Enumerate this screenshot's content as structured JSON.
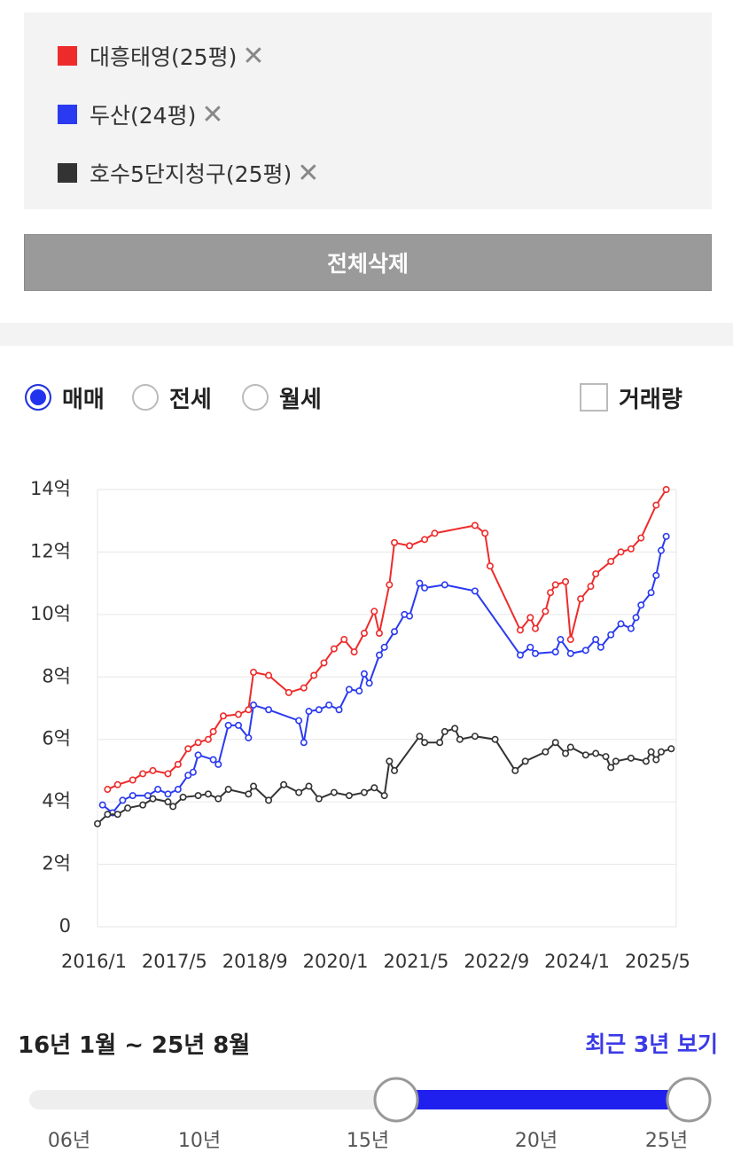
{
  "chart_data": {
    "type": "line",
    "series": [
      {
        "name": "대흥태영(25평)",
        "color": "#ee2b2b",
        "x": [
          "2016/3",
          "2016/5",
          "2016/8",
          "2016/10",
          "2016/12",
          "2017/3",
          "2017/5",
          "2017/7",
          "2017/9",
          "2017/11",
          "2017/12",
          "2018/2",
          "2018/5",
          "2018/7",
          "2018/8",
          "2018/11",
          "2019/3",
          "2019/6",
          "2019/8",
          "2019/10",
          "2019/12",
          "2020/2",
          "2020/4",
          "2020/6",
          "2020/8",
          "2020/9",
          "2020/11",
          "2020/12",
          "2021/3",
          "2021/6",
          "2021/8",
          "2022/4",
          "2022/6",
          "2022/7",
          "2023/1",
          "2023/3",
          "2023/4",
          "2023/6",
          "2023/7",
          "2023/8",
          "2023/10",
          "2023/11",
          "2024/1",
          "2024/3",
          "2024/4",
          "2024/7",
          "2024/9",
          "2024/11",
          "2025/1",
          "2025/4",
          "2025/6"
        ],
        "values": [
          4.4,
          4.55,
          4.7,
          4.9,
          5.0,
          4.9,
          5.2,
          5.7,
          5.9,
          6.0,
          6.25,
          6.75,
          6.8,
          6.95,
          8.15,
          8.05,
          7.5,
          7.65,
          8.05,
          8.45,
          8.9,
          9.2,
          8.8,
          9.4,
          10.1,
          9.4,
          10.95,
          12.3,
          12.2,
          12.4,
          12.6,
          12.85,
          12.6,
          11.55,
          9.5,
          9.9,
          9.55,
          10.1,
          10.7,
          10.95,
          11.05,
          9.2,
          10.5,
          10.9,
          11.3,
          11.7,
          12.0,
          12.1,
          12.45,
          13.5,
          14.0
        ]
      },
      {
        "name": "두산(24평)",
        "color": "#2a3af0",
        "x": [
          "2016/2",
          "2016/4",
          "2016/6",
          "2016/8",
          "2016/11",
          "2017/1",
          "2017/3",
          "2017/5",
          "2017/7",
          "2017/8",
          "2017/9",
          "2017/12",
          "2018/1",
          "2018/3",
          "2018/5",
          "2018/7",
          "2018/8",
          "2018/11",
          "2019/5",
          "2019/6",
          "2019/7",
          "2019/9",
          "2019/11",
          "2020/1",
          "2020/3",
          "2020/5",
          "2020/6",
          "2020/7",
          "2020/9",
          "2020/10",
          "2020/12",
          "2021/2",
          "2021/3",
          "2021/5",
          "2021/6",
          "2021/10",
          "2022/4",
          "2023/1",
          "2023/3",
          "2023/4",
          "2023/8",
          "2023/9",
          "2023/11",
          "2024/2",
          "2024/4",
          "2024/5",
          "2024/7",
          "2024/9",
          "2024/11",
          "2024/12",
          "2025/1",
          "2025/3",
          "2025/4",
          "2025/5",
          "2025/6"
        ],
        "values": [
          3.9,
          3.65,
          4.05,
          4.2,
          4.2,
          4.4,
          4.25,
          4.4,
          4.85,
          4.95,
          5.5,
          5.35,
          5.2,
          6.45,
          6.45,
          6.05,
          7.1,
          6.95,
          6.6,
          5.9,
          6.9,
          6.95,
          7.1,
          6.95,
          7.6,
          7.55,
          8.1,
          7.8,
          8.7,
          8.95,
          9.45,
          10.0,
          9.95,
          11.0,
          10.85,
          10.95,
          10.75,
          8.7,
          8.95,
          8.75,
          8.8,
          9.2,
          8.75,
          8.85,
          9.2,
          8.95,
          9.35,
          9.7,
          9.55,
          9.9,
          10.3,
          10.7,
          11.25,
          12.05,
          12.5
        ]
      },
      {
        "name": "호수5단지청구(25평)",
        "color": "#333333",
        "x": [
          "2016/1",
          "2016/3",
          "2016/5",
          "2016/7",
          "2016/10",
          "2016/12",
          "2017/3",
          "2017/4",
          "2017/6",
          "2017/9",
          "2017/11",
          "2018/1",
          "2018/3",
          "2018/7",
          "2018/8",
          "2018/11",
          "2019/2",
          "2019/5",
          "2019/7",
          "2019/9",
          "2019/12",
          "2020/3",
          "2020/6",
          "2020/8",
          "2020/10",
          "2020/11",
          "2020/12",
          "2021/5",
          "2021/6",
          "2021/9",
          "2021/10",
          "2021/12",
          "2022/1",
          "2022/4",
          "2022/8",
          "2022/12",
          "2023/2",
          "2023/6",
          "2023/8",
          "2023/10",
          "2023/11",
          "2024/2",
          "2024/4",
          "2024/6",
          "2024/7",
          "2024/8",
          "2024/11",
          "2025/2",
          "2025/3",
          "2025/4",
          "2025/5",
          "2025/7"
        ],
        "values": [
          3.3,
          3.6,
          3.6,
          3.8,
          3.9,
          4.1,
          4.0,
          3.85,
          4.15,
          4.2,
          4.25,
          4.1,
          4.4,
          4.25,
          4.5,
          4.05,
          4.55,
          4.3,
          4.5,
          4.1,
          4.3,
          4.2,
          4.3,
          4.45,
          4.2,
          5.3,
          5.0,
          6.1,
          5.9,
          5.9,
          6.25,
          6.35,
          6.0,
          6.1,
          6.0,
          5.0,
          5.3,
          5.6,
          5.9,
          5.55,
          5.75,
          5.5,
          5.55,
          5.45,
          5.1,
          5.3,
          5.4,
          5.3,
          5.6,
          5.35,
          5.6,
          5.7
        ]
      }
    ],
    "xlim": [
      "2016/1",
      "2025/8"
    ],
    "xticks": [
      "2016/1",
      "2017/5",
      "2018/9",
      "2020/1",
      "2021/5",
      "2022/9",
      "2024/1",
      "2025/5"
    ],
    "ylim": [
      0,
      14
    ],
    "yticks": [
      0,
      {
        "value": 2,
        "label": "2억"
      },
      {
        "value": 4,
        "label": "4억"
      },
      {
        "value": 6,
        "label": "6억"
      },
      {
        "value": 8,
        "label": "8억"
      },
      {
        "value": 10,
        "label": "10억"
      },
      {
        "value": 12,
        "label": "12억"
      },
      {
        "value": 14,
        "label": "14억"
      }
    ],
    "grid": true
  },
  "controls": {
    "delete_all": "전체삭제",
    "trade_types": [
      "매매",
      "전세",
      "월세"
    ],
    "volume_checkbox": "거래량"
  },
  "period": {
    "range_text": "16년 1월 ~ 25년 8월",
    "recent_link": "최근 3년 보기",
    "slider_ticks": [
      "06년",
      "10년",
      "15년",
      "20년",
      "25년"
    ]
  }
}
